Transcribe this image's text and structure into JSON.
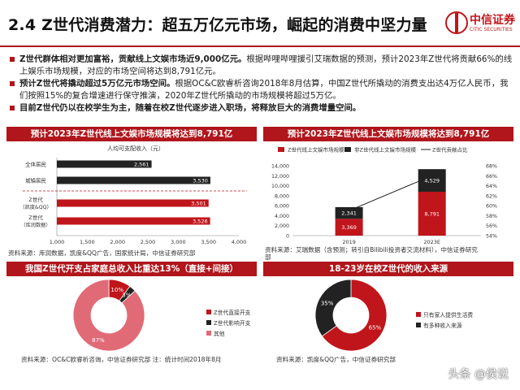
{
  "header": {
    "title": "2.4 Z世代消费潜力：超五万亿元市场，崛起的消费中坚力量",
    "logo_cn": "中信证券",
    "logo_en": "CITIC SECURITIES"
  },
  "bullets": [
    {
      "bold": "Z世代群体相对更加富裕，贡献线上文娱市场近9,000亿元。",
      "rest": "根据哔哩哔哩援引艾瑞数据的预测，预计2023年Z世代将贡献66%的线上娱乐市场规模，对应的市场空间将达到8,791亿元。"
    },
    {
      "bold": "预计Z世代将撬动超过5万亿元市场空间。",
      "rest": "根据OC&C欧睿析咨询2018年8月估算，中国Z世代所撬动的消费支出达4万亿人民币，我们按照15%的复合增速进行保守推演，2020年Z世代所撬动的市场规模将超过5万亿。"
    },
    {
      "bold": "目前Z世代仍以在校学生为主，随着在校Z世代逐步进入职场，将释放巨大的消费增量空间。",
      "rest": ""
    }
  ],
  "panels": {
    "p1_title": "预计2023年Z世代线上文娱市场规模将达到8,791亿",
    "p2_title": "预计2023年Z世代线上文娱市场规模将达到8,791亿",
    "p3_title": "我国Z世代开支占家庭总收入比重达13%（直接+间接）",
    "p4_title": "18-23岁在校Z世代的收入来源"
  },
  "sources": {
    "p1": "资料来源：库润数据，凯度&QQ广告，国家统计局，中信证券研究部",
    "p2_line1": "资料来源：艾瑞数据（含预测；转引自Bilibili投资者交流材料），中信证券研究",
    "p2_line2": "部",
    "p3": "资料来源：OC&C欧睿析咨询，中信证券研究部  注：统计时间2018年8月",
    "p4": "资料来源：凯度&QQ广告，中信证券研究部"
  },
  "watermark": "头条 @侯说",
  "colors": {
    "red": "#c0151b",
    "dark": "#222222",
    "pink": "#e06b77",
    "pale": "#f2b5bd"
  },
  "chart_data": [
    {
      "type": "bar",
      "orientation": "horizontal",
      "title": "人均可支配收入（元）",
      "categories": [
        "全体居民",
        "城镇居民",
        "Z世代\n（凯度&QQ）",
        "Z世代\n（库润数据）"
      ],
      "values": [
        2561,
        3530,
        3501,
        3526
      ],
      "xlim": [
        1000,
        4000
      ],
      "xticks": [
        "1,000",
        "1,500",
        "2,000",
        "2,500",
        "3,000",
        "3,500",
        "4,000"
      ],
      "value_labels": [
        "2,561",
        "3,530",
        "3,501",
        "3,526"
      ],
      "bar_colors": [
        "#222222",
        "#222222",
        "#c0151b",
        "#c0151b"
      ]
    },
    {
      "type": "bar",
      "stacked": true,
      "categories": [
        "2019",
        "2023E"
      ],
      "series": [
        {
          "name": "Z世代线上文娱市场规模",
          "values": [
            3369,
            8791
          ],
          "labels": [
            "3,369",
            "8,791"
          ],
          "color": "#c0151b"
        },
        {
          "name": "非Z世代线上文娱市场规模",
          "values": [
            2341,
            4529
          ],
          "labels": [
            "2,341",
            "4,529"
          ],
          "color": "#222222"
        },
        {
          "name": "Z世代贡献占比",
          "type": "line",
          "axis": "right",
          "values": [
            59.0,
            66.0
          ],
          "color": "#222222"
        }
      ],
      "ylim": [
        0,
        14000
      ],
      "yticks": [
        "0",
        "2,000",
        "4,000",
        "6,000",
        "8,000",
        "10,000",
        "12,000",
        "14,000"
      ],
      "y2lim": [
        54,
        68
      ],
      "y2ticks": [
        "54%",
        "56%",
        "58%",
        "60%",
        "62%",
        "64%",
        "66%",
        "68%"
      ],
      "legend": "top"
    },
    {
      "type": "pie",
      "donut": true,
      "slices": [
        {
          "name": "Z世代直接开支",
          "value": 10,
          "label": "10%",
          "color": "#c0151b"
        },
        {
          "name": "Z世代影响开支",
          "value": 3,
          "label": "3%",
          "color": "#222222"
        },
        {
          "name": "其他",
          "value": 87,
          "label": "87%",
          "color": "#e06b77"
        }
      ],
      "legend": "right"
    },
    {
      "type": "pie",
      "donut": true,
      "slices": [
        {
          "name": "只有家人提供生活费",
          "value": 65,
          "label": "65%",
          "color": "#c0151b"
        },
        {
          "name": "有多种收入来源",
          "value": 35,
          "label": "35%",
          "color": "#222222"
        }
      ],
      "legend": "right"
    }
  ]
}
